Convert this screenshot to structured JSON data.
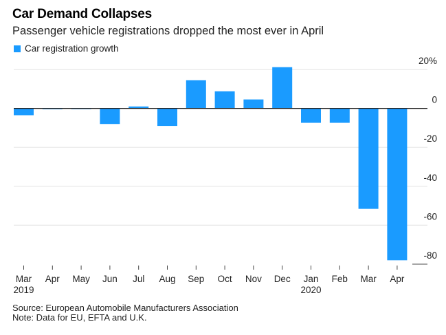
{
  "chart_data": {
    "type": "bar",
    "title": "Car Demand Collapses",
    "subtitle": "Passenger vehicle registrations dropped the most ever in April",
    "legend": [
      {
        "name": "Car registration growth",
        "color": "#1a9bff"
      }
    ],
    "legend_placement": "top-left",
    "categories": [
      "Mar",
      "Apr",
      "May",
      "Jun",
      "Jul",
      "Aug",
      "Sep",
      "Oct",
      "Nov",
      "Dec",
      "Jan",
      "Feb",
      "Mar",
      "Apr"
    ],
    "year_labels": [
      {
        "index": 0,
        "label": "2019"
      },
      {
        "index": 10,
        "label": "2020"
      }
    ],
    "series": [
      {
        "name": "Car registration growth",
        "color": "#1a9bff",
        "values": [
          -3.5,
          -0.4,
          -0.3,
          -8.0,
          1.0,
          -9.0,
          14.5,
          8.8,
          4.6,
          21.2,
          -7.4,
          -7.4,
          -51.6,
          -78.0
        ]
      }
    ],
    "xlabel": "",
    "ylabel": "",
    "ylim": [
      -80,
      20
    ],
    "yticks": [
      20,
      0,
      -20,
      -40,
      -60,
      -80
    ],
    "ytick_labels": [
      "20%",
      "0",
      "-20",
      "-40",
      "-60",
      "-80"
    ],
    "y_axis_side": "right",
    "grid": true
  },
  "footer": {
    "source": "Source: European Automobile Manufacturers Association",
    "note": "Note: Data for EU, EFTA and U.K."
  }
}
